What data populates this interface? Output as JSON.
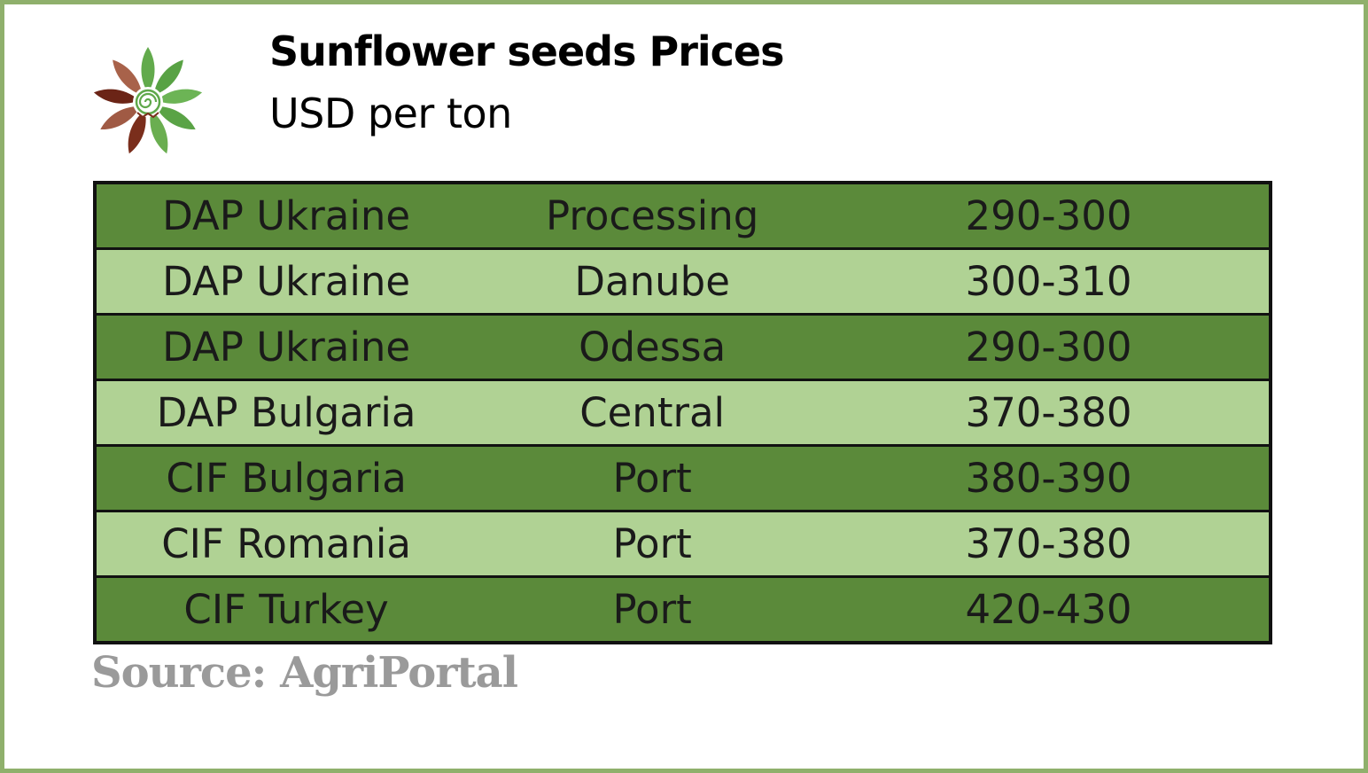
{
  "header": {
    "title": "Sunflower seeds Prices",
    "subtitle": "USD per ton"
  },
  "logo": {
    "icon": "sunflower-logo-icon",
    "colors": {
      "green": "#5fa84a",
      "brown": "#7a2e1c",
      "tan": "#a05a44"
    }
  },
  "table": {
    "rows": [
      {
        "basis": "DAP Ukraine",
        "location": "Processing",
        "price": "290-300",
        "shade": "dark"
      },
      {
        "basis": "DAP Ukraine",
        "location": "Danube",
        "price": "300-310",
        "shade": "light"
      },
      {
        "basis": "DAP Ukraine",
        "location": "Odessa",
        "price": "290-300",
        "shade": "dark"
      },
      {
        "basis": "DAP Bulgaria",
        "location": "Central",
        "price": "370-380",
        "shade": "light"
      },
      {
        "basis": "CIF Bulgaria",
        "location": "Port",
        "price": "380-390",
        "shade": "dark"
      },
      {
        "basis": "CIF Romania",
        "location": "Port",
        "price": "370-380",
        "shade": "light"
      },
      {
        "basis": "CIF Turkey",
        "location": "Port",
        "price": "420-430",
        "shade": "dark"
      }
    ],
    "colors": {
      "dark_row": "#5b8a3a",
      "light_row": "#b0d294",
      "border": "#111111"
    }
  },
  "footer": {
    "source": "Source: AgriPortal"
  },
  "frame": {
    "border_color": "#8fb06c"
  }
}
